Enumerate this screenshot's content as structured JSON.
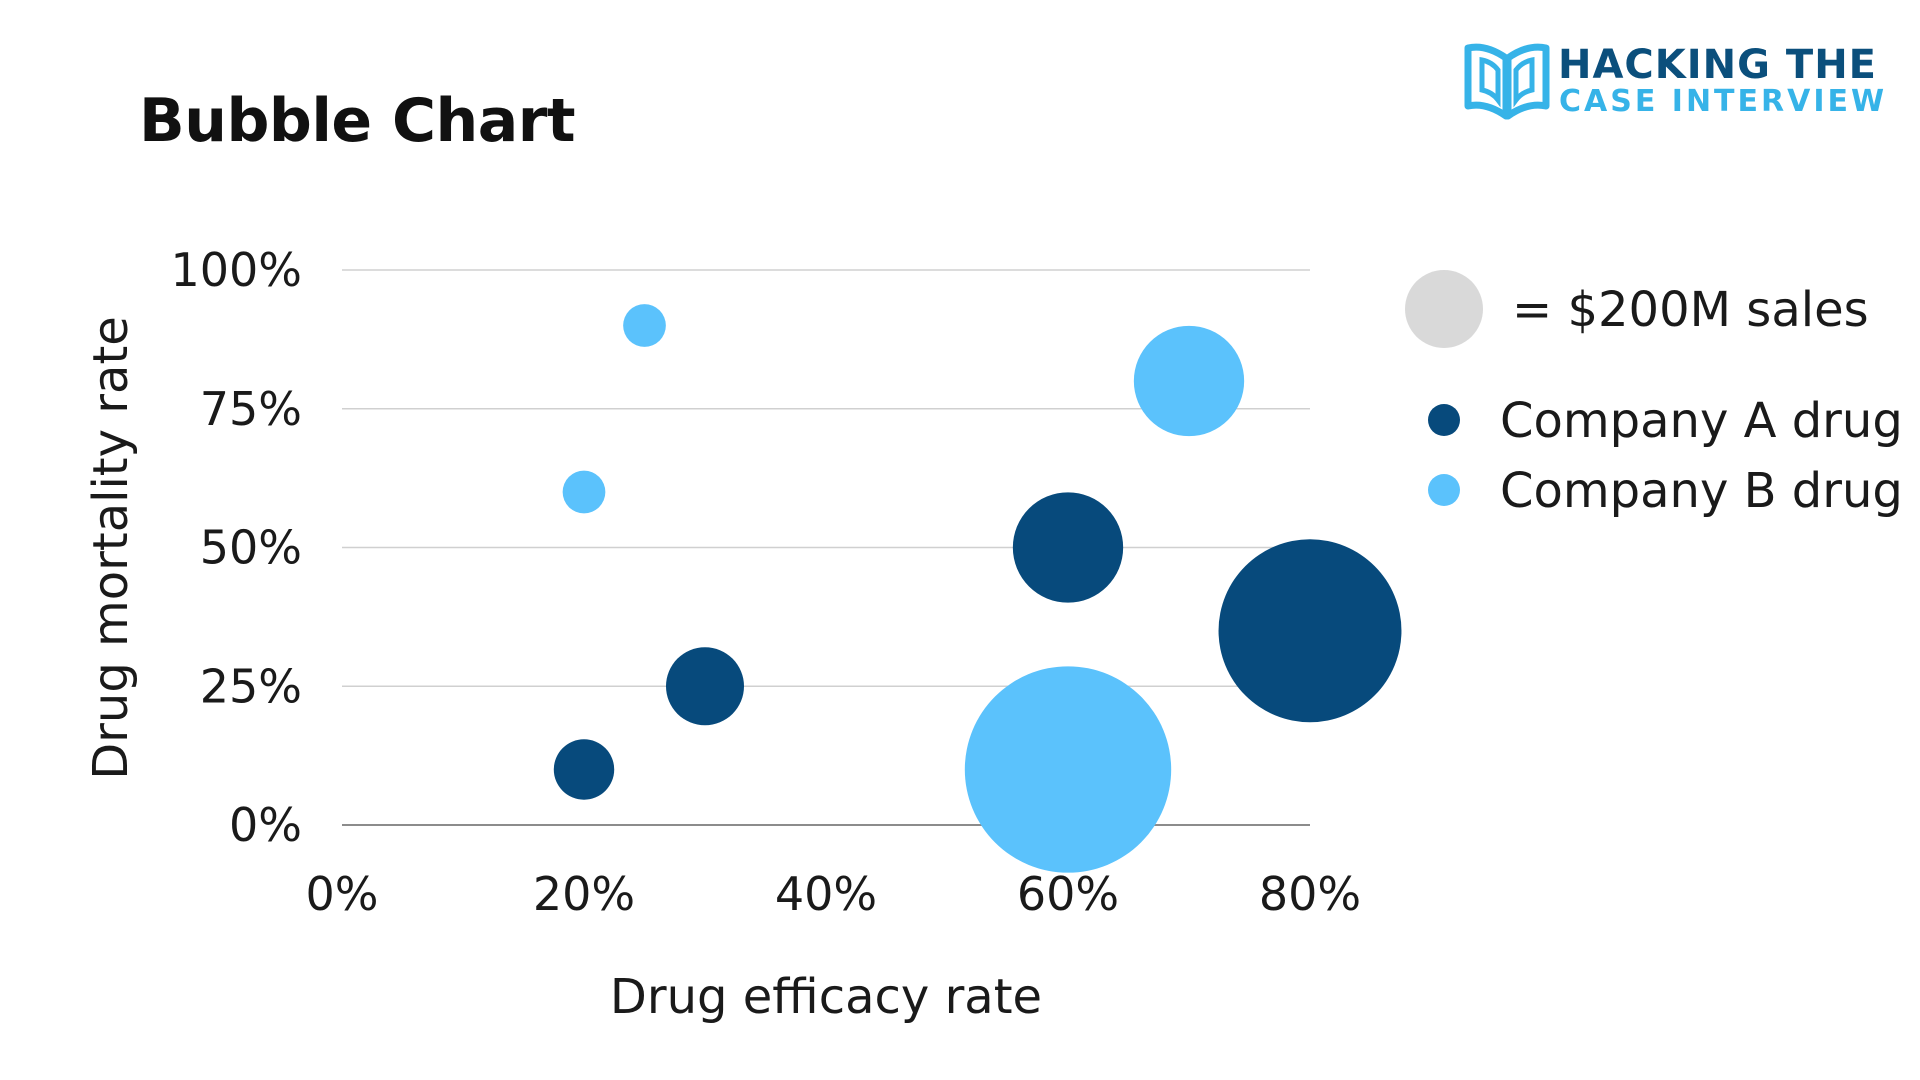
{
  "page_title": "Bubble Chart",
  "logo": {
    "line1": "HACKING THE",
    "line2": "CASE INTERVIEW",
    "colors": {
      "dark": "#0b4f7c",
      "light": "#36b3e8"
    }
  },
  "chart_data": {
    "type": "bubble",
    "title": "Bubble Chart",
    "xlabel": "Drug efficacy rate",
    "ylabel": "Drug mortality rate",
    "xlim": [
      0,
      80
    ],
    "ylim": [
      0,
      100
    ],
    "x_ticks": [
      "0%",
      "20%",
      "40%",
      "60%",
      "80%"
    ],
    "y_ticks": [
      "0%",
      "25%",
      "50%",
      "75%",
      "100%"
    ],
    "grid": "horizontal",
    "legend_position": "right",
    "size_legend": {
      "label": "= $200M sales",
      "sales_musd": 200,
      "color": "#d9d9d9"
    },
    "series": [
      {
        "name": "Company A drug",
        "color": "#074a7c",
        "points": [
          {
            "x": 20,
            "y": 10,
            "sales_musd": 120
          },
          {
            "x": 30,
            "y": 25,
            "sales_musd": 200
          },
          {
            "x": 60,
            "y": 50,
            "sales_musd": 400
          },
          {
            "x": 80,
            "y": 35,
            "sales_musd": 1100
          }
        ]
      },
      {
        "name": "Company B drug",
        "color": "#5bc2fc",
        "points": [
          {
            "x": 25,
            "y": 90,
            "sales_musd": 60
          },
          {
            "x": 20,
            "y": 60,
            "sales_musd": 60
          },
          {
            "x": 70,
            "y": 80,
            "sales_musd": 400
          },
          {
            "x": 60,
            "y": 10,
            "sales_musd": 1400
          }
        ]
      }
    ]
  }
}
